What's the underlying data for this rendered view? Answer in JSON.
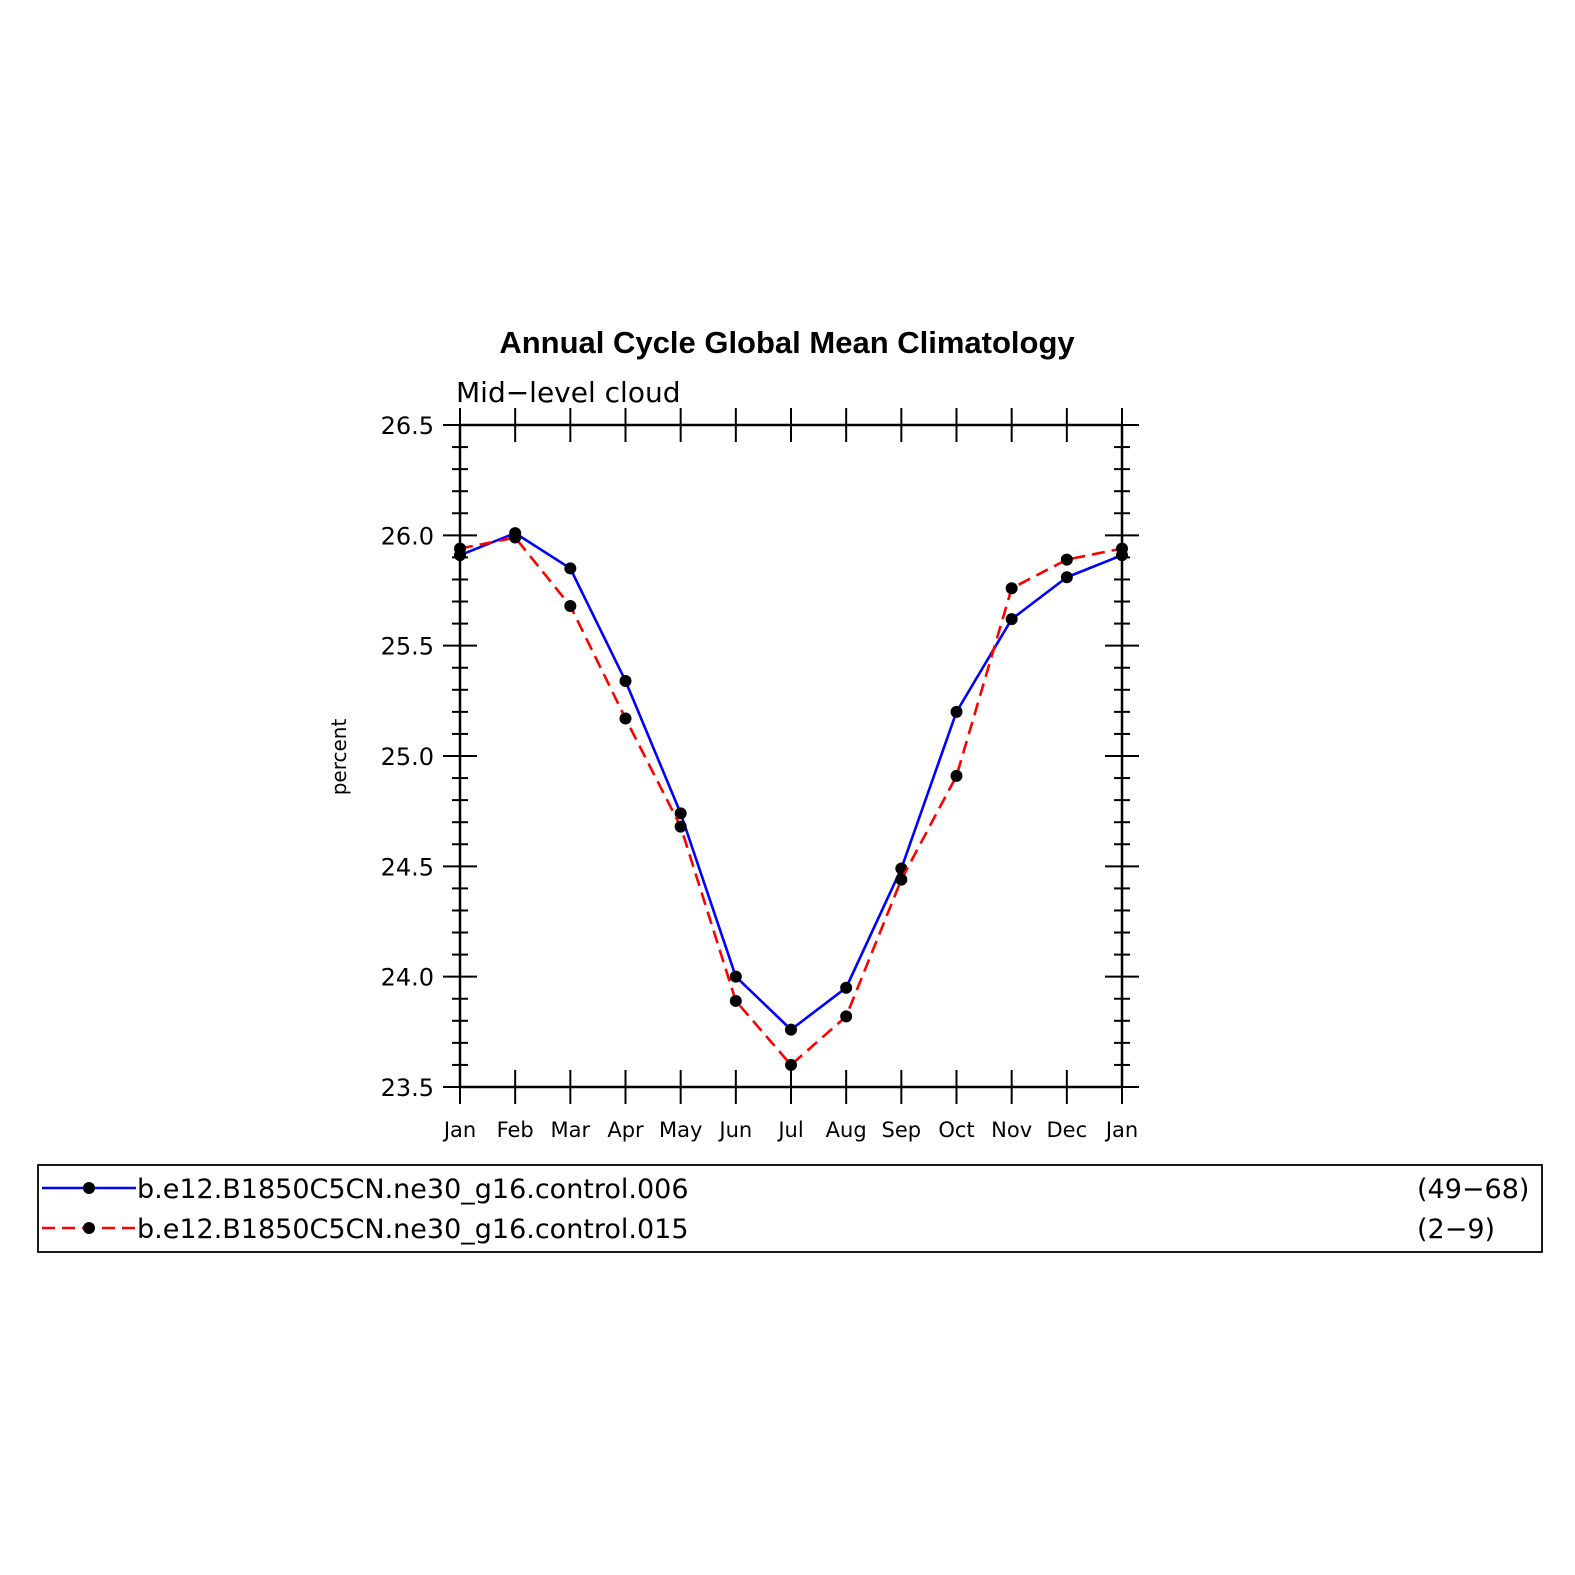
{
  "chart_data": {
    "type": "line",
    "title": "Annual Cycle Global Mean Climatology",
    "subtitle": "Mid−level cloud",
    "xlabel": "",
    "ylabel": "percent",
    "categories": [
      "Jan",
      "Feb",
      "Mar",
      "Apr",
      "May",
      "Jun",
      "Jul",
      "Aug",
      "Sep",
      "Oct",
      "Nov",
      "Dec",
      "Jan"
    ],
    "ylim": [
      23.5,
      26.5
    ],
    "yticks": [
      "23.5",
      "24.0",
      "24.5",
      "25.0",
      "25.5",
      "26.0",
      "26.5"
    ],
    "legend_position": "bottom",
    "series": [
      {
        "name": "b.e12.B1850C5CN.ne30_g16.control.006",
        "years": "(49−68)",
        "color": "#0000ff",
        "dash": "solid",
        "values": [
          25.91,
          26.01,
          25.85,
          25.34,
          24.74,
          24.0,
          23.76,
          23.95,
          24.49,
          25.2,
          25.62,
          25.81,
          25.91
        ]
      },
      {
        "name": "b.e12.B1850C5CN.ne30_g16.control.015",
        "years": "(2−9)",
        "color": "#ff0000",
        "dash": "dashed",
        "values": [
          25.94,
          25.99,
          25.68,
          25.17,
          24.68,
          23.89,
          23.6,
          23.82,
          24.44,
          24.91,
          25.76,
          25.89,
          25.94
        ]
      }
    ]
  }
}
